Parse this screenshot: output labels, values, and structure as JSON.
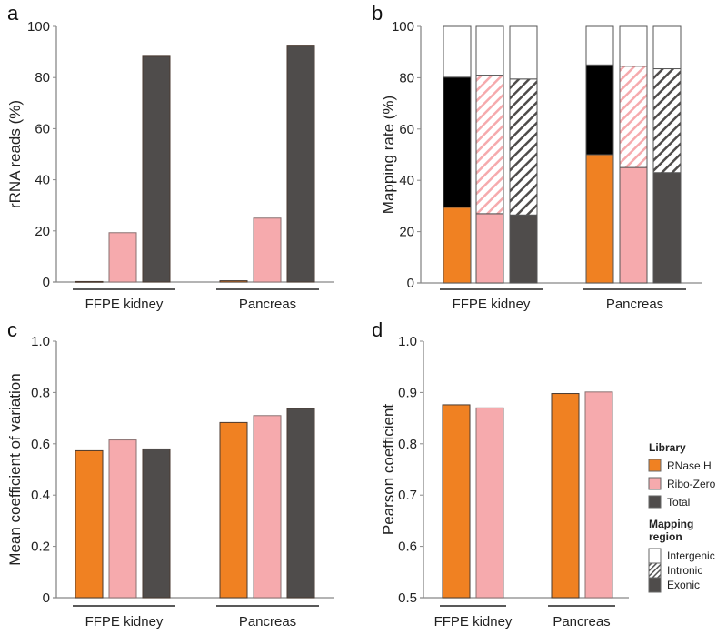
{
  "colors": {
    "RNase H": "#f08122",
    "Ribo-Zero": "#f6aaad",
    "Total": "#4f4c4b"
  },
  "chart_data": [
    {
      "panel": "a",
      "type": "bar",
      "ylabel": "rRNA reads (%)",
      "ylim": [
        0,
        100
      ],
      "yticks": [
        "0",
        "20",
        "40",
        "60",
        "80",
        "100"
      ],
      "categories": [
        "FFPE kidney",
        "Pancreas"
      ],
      "series": [
        {
          "name": "RNase H",
          "values": [
            0.2,
            0.5
          ]
        },
        {
          "name": "Ribo-Zero",
          "values": [
            19.3,
            25.0
          ]
        },
        {
          "name": "Total",
          "values": [
            88.3,
            92.3
          ]
        }
      ]
    },
    {
      "panel": "b",
      "type": "bar",
      "stacked": true,
      "ylabel": "Mapping rate (%)",
      "ylim": [
        0,
        100
      ],
      "yticks": [
        "0",
        "20",
        "40",
        "60",
        "80",
        "100"
      ],
      "categories": [
        "FFPE kidney",
        "Pancreas"
      ],
      "libraries": [
        "RNase H",
        "Ribo-Zero",
        "Total"
      ],
      "regions": [
        {
          "name": "Exonic",
          "values": [
            [
              29.5,
              27.0,
              26.5
            ],
            [
              50.0,
              45.0,
              43.0
            ]
          ]
        },
        {
          "name": "Intronic",
          "values": [
            [
              50.7,
              54.0,
              53.0
            ],
            [
              35.0,
              39.5,
              40.5
            ]
          ]
        },
        {
          "name": "Intergenic",
          "values": [
            [
              19.8,
              19.0,
              20.5
            ],
            [
              15.0,
              15.5,
              16.5
            ]
          ]
        }
      ]
    },
    {
      "panel": "c",
      "type": "bar",
      "ylabel": "Mean coefficient of variation",
      "ylim": [
        0,
        1.0
      ],
      "yticks": [
        "0",
        "0.2",
        "0.4",
        "0.6",
        "0.8",
        "1.0"
      ],
      "categories": [
        "FFPE kidney",
        "Pancreas"
      ],
      "series": [
        {
          "name": "RNase H",
          "values": [
            0.573,
            0.683
          ]
        },
        {
          "name": "Ribo-Zero",
          "values": [
            0.615,
            0.71
          ]
        },
        {
          "name": "Total",
          "values": [
            0.58,
            0.738
          ]
        }
      ]
    },
    {
      "panel": "d",
      "type": "bar",
      "ylabel": "Pearson coefficient",
      "ylim": [
        0.5,
        1.0
      ],
      "yticks": [
        "0.5",
        "0.6",
        "0.7",
        "0.8",
        "0.9",
        "1.0"
      ],
      "categories": [
        "FFPE kidney",
        "Pancreas"
      ],
      "series": [
        {
          "name": "RNase H",
          "values": [
            0.876,
            0.898
          ]
        },
        {
          "name": "Ribo-Zero",
          "values": [
            0.87,
            0.901
          ]
        }
      ]
    }
  ],
  "legend": {
    "library_title": "Library",
    "library_items": [
      "RNase H",
      "Ribo-Zero",
      "Total"
    ],
    "region_title_1": "Mapping",
    "region_title_2": "region",
    "region_items": [
      "Intergenic",
      "Intronic",
      "Exonic"
    ]
  }
}
